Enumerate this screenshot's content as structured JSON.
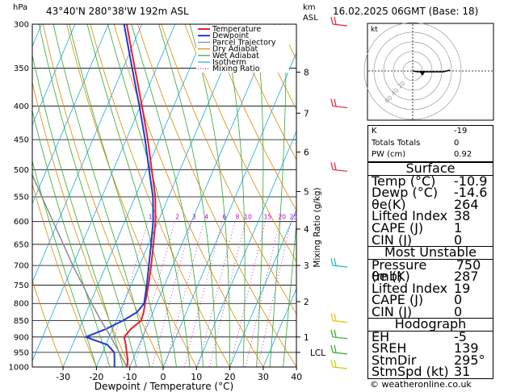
{
  "header": {
    "left": "43°40'N  280°38'W  192m  ASL",
    "right": "16.02.2025  06GMT  (Base: 18)",
    "hpa": "hPa",
    "km": "km",
    "asl": "ASL"
  },
  "chart_data": {
    "type": "line",
    "title": "43°40'N  280°38'W  192m  ASL",
    "xlabel": "Dewpoint / Temperature (°C)",
    "ylabel": "hPa",
    "right_axis_label": "Mixing Ratio (g/kg)",
    "x_ticks": [
      -30,
      -20,
      -10,
      0,
      10,
      20,
      30,
      40
    ],
    "pressure_levels": [
      300,
      350,
      400,
      450,
      500,
      550,
      600,
      650,
      700,
      750,
      800,
      850,
      900,
      950,
      1000
    ],
    "km_levels": [
      {
        "km": "8",
        "p": 355
      },
      {
        "km": "7",
        "p": 410
      },
      {
        "km": "6",
        "p": 470
      },
      {
        "km": "5",
        "p": 540
      },
      {
        "km": "4",
        "p": 616
      },
      {
        "km": "3",
        "p": 700
      },
      {
        "km": "2",
        "p": 795
      },
      {
        "km": "1",
        "p": 900
      },
      {
        "km": "LCL",
        "p": 950
      }
    ],
    "mixing_ratio_labels": [
      "1",
      "2",
      "3",
      "4",
      "6",
      "8",
      "10",
      "15",
      "20",
      "25"
    ],
    "legend": [
      {
        "name": "Temperature",
        "color": "#e8202a"
      },
      {
        "name": "Dewpoint",
        "color": "#1e3cd2"
      },
      {
        "name": "Parcel Trajectory",
        "color": "#8c8c8c"
      },
      {
        "name": "Dry Adiabat",
        "color": "#e08a00"
      },
      {
        "name": "Wet Adiabat",
        "color": "#2fa82f"
      },
      {
        "name": "Isotherm",
        "color": "#18a8e8"
      },
      {
        "name": "Mixing Ratio",
        "color": "#c000c0"
      }
    ],
    "series": [
      {
        "name": "Temperature",
        "color": "#e8202a",
        "points": [
          [
            1000,
            -10.9
          ],
          [
            975,
            -11.5
          ],
          [
            950,
            -12.8
          ],
          [
            925,
            -14.0
          ],
          [
            900,
            -15.5
          ],
          [
            875,
            -14.5
          ],
          [
            850,
            -12.5
          ],
          [
            825,
            -12.8
          ],
          [
            800,
            -13.5
          ],
          [
            750,
            -14.8
          ],
          [
            700,
            -16.5
          ],
          [
            650,
            -18.5
          ],
          [
            600,
            -20.8
          ],
          [
            550,
            -24.0
          ],
          [
            500,
            -28.5
          ],
          [
            450,
            -33.5
          ],
          [
            400,
            -39.5
          ],
          [
            350,
            -46.5
          ],
          [
            300,
            -54.5
          ]
        ]
      },
      {
        "name": "Dewpoint",
        "color": "#1e3cd2",
        "points": [
          [
            1000,
            -14.6
          ],
          [
            975,
            -15.5
          ],
          [
            950,
            -16.5
          ],
          [
            925,
            -19.5
          ],
          [
            900,
            -27.0
          ],
          [
            875,
            -22.0
          ],
          [
            850,
            -18.0
          ],
          [
            825,
            -14.8
          ],
          [
            800,
            -13.8
          ],
          [
            750,
            -15.3
          ],
          [
            700,
            -17.2
          ],
          [
            650,
            -19.2
          ],
          [
            600,
            -21.5
          ],
          [
            550,
            -24.7
          ],
          [
            500,
            -29.3
          ],
          [
            450,
            -34.3
          ],
          [
            400,
            -40.3
          ],
          [
            350,
            -47.3
          ],
          [
            300,
            -55.3
          ]
        ]
      },
      {
        "name": "Parcel Trajectory",
        "color": "#8c8c8c",
        "points": [
          [
            1000,
            -10.9
          ],
          [
            950,
            -15.0
          ],
          [
            900,
            -19.5
          ],
          [
            850,
            -24.5
          ],
          [
            800,
            -29.5
          ],
          [
            750,
            -34.5
          ],
          [
            700,
            -40.0
          ],
          [
            650,
            -45.5
          ],
          [
            600,
            -51.5
          ],
          [
            550,
            -58.0
          ],
          [
            500,
            -65.0
          ],
          [
            450,
            -72.0
          ],
          [
            400,
            -80.0
          ]
        ]
      }
    ],
    "hodograph": {
      "label": "kt",
      "ring_labels": [
        "20",
        "40",
        "60",
        "80",
        "100",
        "120"
      ]
    }
  },
  "indices": {
    "top": [
      {
        "label": "K",
        "value": "-19"
      },
      {
        "label": "Totals Totals",
        "value": "0"
      },
      {
        "label": "PW (cm)",
        "value": "0.92"
      }
    ],
    "surface": {
      "title": "Surface",
      "rows": [
        {
          "label": "Temp (°C)",
          "value": "-10.9"
        },
        {
          "label": "Dewp (°C)",
          "value": "-14.6"
        },
        {
          "label": "θe(K)",
          "value": "264"
        },
        {
          "label": "Lifted Index",
          "value": "38"
        },
        {
          "label": "CAPE (J)",
          "value": "1"
        },
        {
          "label": "CIN (J)",
          "value": "0"
        }
      ]
    },
    "unstable": {
      "title": "Most Unstable",
      "rows": [
        {
          "label": "Pressure (mb)",
          "value": "750"
        },
        {
          "label": "θe (K)",
          "value": "287"
        },
        {
          "label": "Lifted Index",
          "value": "19"
        },
        {
          "label": "CAPE (J)",
          "value": "0"
        },
        {
          "label": "CIN (J)",
          "value": "0"
        }
      ]
    },
    "hodograph": {
      "title": "Hodograph",
      "rows": [
        {
          "label": "EH",
          "value": "-5"
        },
        {
          "label": "SREH",
          "value": "139"
        },
        {
          "label": "StmDir",
          "value": "295°"
        },
        {
          "label": "StmSpd (kt)",
          "value": "31"
        }
      ]
    }
  },
  "footer": "© weatheronline.co.uk"
}
